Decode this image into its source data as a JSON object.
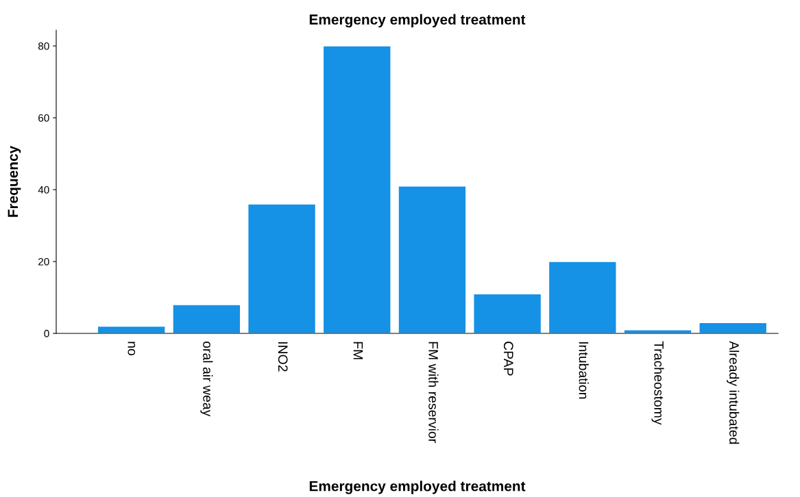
{
  "chart_data": {
    "type": "bar",
    "title": "Emergency employed treatment",
    "xlabel": "Emergency employed treatment",
    "ylabel": "Frequency",
    "categories": [
      "no",
      "oral air weay",
      "INO2",
      "FM",
      "FM with reservior",
      "CPAP",
      "Intubation",
      "Tracheostomy",
      "Already intubated"
    ],
    "values": [
      2,
      8,
      36,
      80,
      41,
      11,
      20,
      1,
      3
    ],
    "color": "#1591e6",
    "ylim": [
      0,
      84.4
    ],
    "yticks": [
      0,
      20,
      40,
      60,
      80
    ],
    "grid": false,
    "legend": false
  }
}
